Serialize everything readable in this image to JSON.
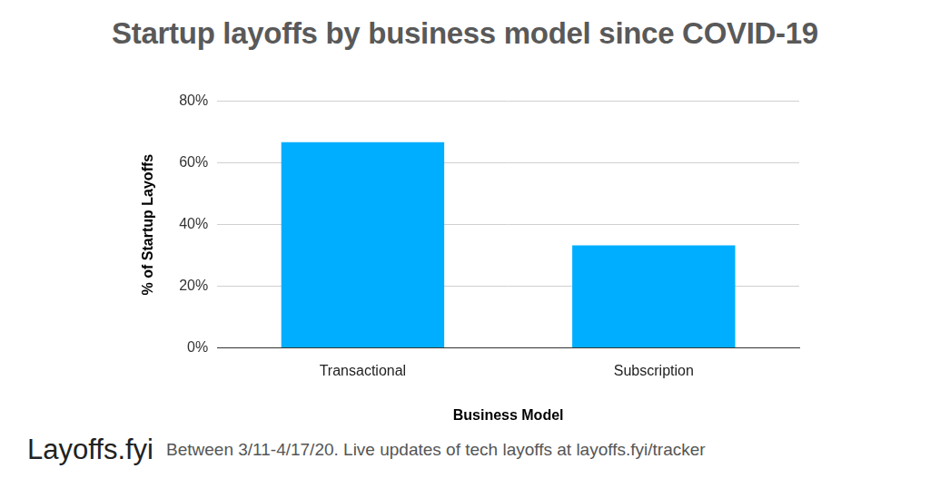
{
  "chart_data": {
    "type": "bar",
    "title": "Startup layoffs by business model since COVID-19",
    "x_label": "Business Model",
    "y_label": "% of Startup Layoffs",
    "categories": [
      "Transactional",
      "Subscription"
    ],
    "values": [
      66.7,
      33.3
    ],
    "color": "#00aeff",
    "ylim": [
      0,
      80
    ],
    "yticks": [
      {
        "value": 0,
        "label": "0%"
      },
      {
        "value": 20,
        "label": "20%"
      },
      {
        "value": 40,
        "label": "40%"
      },
      {
        "value": 60,
        "label": "60%"
      },
      {
        "value": 80,
        "label": "80%"
      }
    ],
    "grid": true,
    "annotations": [
      "Layoffs.fyi",
      "Between 3/11-4/17/20. Live updates of tech layoffs at layoffs.fyi/tracker"
    ]
  }
}
